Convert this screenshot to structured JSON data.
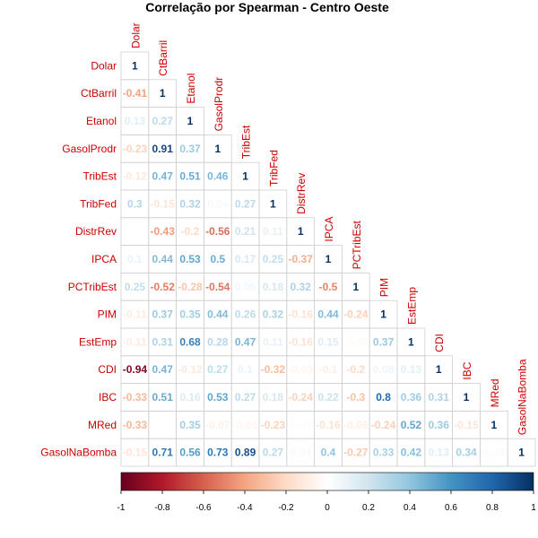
{
  "chart_data": {
    "type": "heatmap",
    "title": "Correlação por Spearman - Centro Oeste",
    "variables": [
      "Dolar",
      "CtBarril",
      "Etanol",
      "GasolProdr",
      "TribEst",
      "TribFed",
      "DistrRev",
      "IPCA",
      "PCTribEst",
      "PIM",
      "EstEmp",
      "CDI",
      "IBC",
      "MRed",
      "GasolNaBomba"
    ],
    "layout": "lower-triangle",
    "rows": [
      [
        1
      ],
      [
        -0.41,
        1
      ],
      [
        0.13,
        0.27,
        1
      ],
      [
        -0.23,
        0.91,
        0.37,
        1
      ],
      [
        -0.12,
        0.47,
        0.51,
        0.46,
        1
      ],
      [
        0.3,
        -0.15,
        0.32,
        0.04,
        0.27,
        1
      ],
      [
        null,
        -0.43,
        -0.2,
        -0.56,
        0.21,
        0.11,
        1
      ],
      [
        0.1,
        0.44,
        0.53,
        0.5,
        0.17,
        0.25,
        -0.37,
        1
      ],
      [
        0.25,
        -0.52,
        -0.28,
        -0.54,
        0.06,
        0.18,
        0.32,
        -0.5,
        1
      ],
      [
        -0.11,
        0.37,
        0.35,
        0.44,
        0.26,
        0.32,
        -0.16,
        0.44,
        -0.24,
        1
      ],
      [
        -0.11,
        0.31,
        0.68,
        0.28,
        0.47,
        0.11,
        -0.16,
        0.15,
        -0.03,
        0.37,
        1
      ],
      [
        -0.94,
        0.47,
        -0.12,
        0.27,
        0.1,
        -0.32,
        -0.05,
        -0.1,
        -0.2,
        0.08,
        0.13,
        1
      ],
      [
        -0.33,
        0.51,
        0.16,
        0.53,
        0.27,
        0.18,
        -0.24,
        0.22,
        -0.3,
        0.8,
        0.36,
        0.31,
        1
      ],
      [
        -0.33,
        null,
        0.35,
        -0.07,
        -0.05,
        -0.23,
        -0.02,
        -0.16,
        -0.09,
        -0.24,
        0.52,
        0.36,
        -0.15,
        1
      ],
      [
        -0.15,
        0.71,
        0.56,
        0.73,
        0.89,
        0.27,
        0.04,
        0.4,
        -0.27,
        0.33,
        0.42,
        0.13,
        0.34,
        -0.03,
        1
      ]
    ],
    "colorbar": {
      "range": [
        -1,
        1
      ],
      "ticks": [
        "-1",
        "-0.8",
        "-0.6",
        "-0.4",
        "-0.2",
        "0",
        "0.2",
        "0.4",
        "0.6",
        "0.8",
        "1"
      ],
      "colors": [
        "#67001F",
        "#B2182B",
        "#D6604D",
        "#F4A582",
        "#FDDBC7",
        "#FFFFFF",
        "#D1E5F0",
        "#92C5DE",
        "#4393C3",
        "#2166AC",
        "#053061"
      ]
    },
    "label_color": "#CC0000",
    "grid": true
  }
}
